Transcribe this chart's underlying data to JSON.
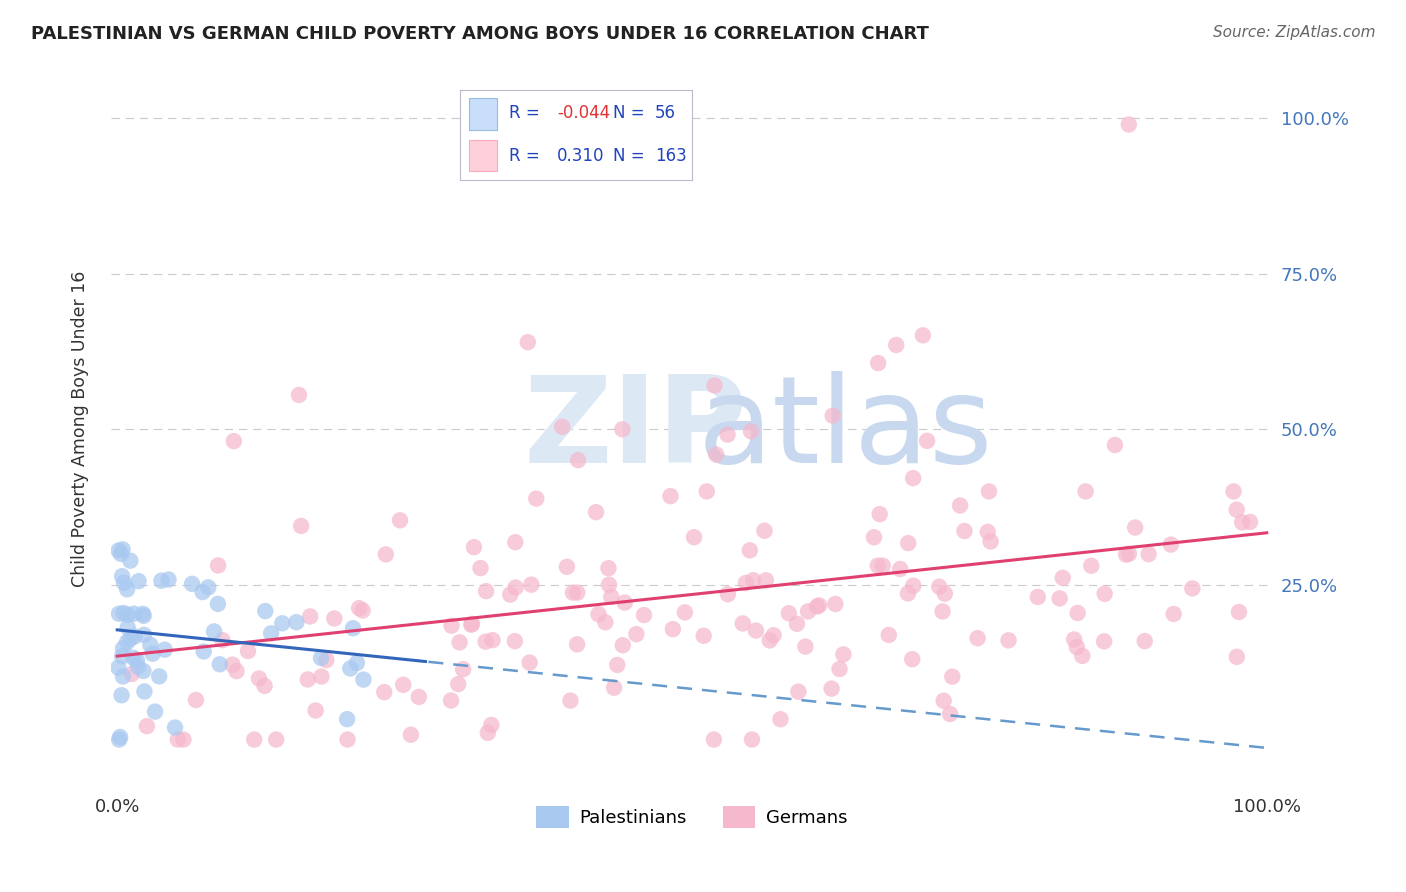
{
  "title": "PALESTINIAN VS GERMAN CHILD POVERTY AMONG BOYS UNDER 16 CORRELATION CHART",
  "source": "Source: ZipAtlas.com",
  "ylabel": "Child Poverty Among Boys Under 16",
  "xlim": [
    -0.005,
    1.005
  ],
  "ylim": [
    -0.08,
    1.08
  ],
  "yticks": [
    0.0,
    0.25,
    0.5,
    0.75,
    1.0
  ],
  "ytick_labels": [
    "",
    "25.0%",
    "50.0%",
    "75.0%",
    "100.0%"
  ],
  "xtick_labels": [
    "0.0%",
    "",
    "",
    "",
    "100.0%"
  ],
  "xticks": [
    0.0,
    0.25,
    0.5,
    0.75,
    1.0
  ],
  "palestinians_color": "#A8C8F0",
  "palestinians_color_edge": "#7AAEE0",
  "germans_color": "#F5B8CC",
  "palestinians_R": -0.044,
  "palestinians_N": 56,
  "germans_R": 0.31,
  "germans_N": 163,
  "trend_blue_solid": "#3366BB",
  "trend_blue_dashed": "#6699CC",
  "trend_pink": "#E04070",
  "legend_box_blue_fill": "#C8DEFA",
  "legend_box_pink_fill": "#FDD0DC",
  "background_color": "#FFFFFF",
  "grid_color": "#CCCCCC",
  "title_color": "#222222",
  "axis_label_color": "#4477BB",
  "watermark_zip_color": "#DDE8F5",
  "watermark_atlas_color": "#C8D8EE",
  "seed_palestinians": 42,
  "seed_germans": 123
}
